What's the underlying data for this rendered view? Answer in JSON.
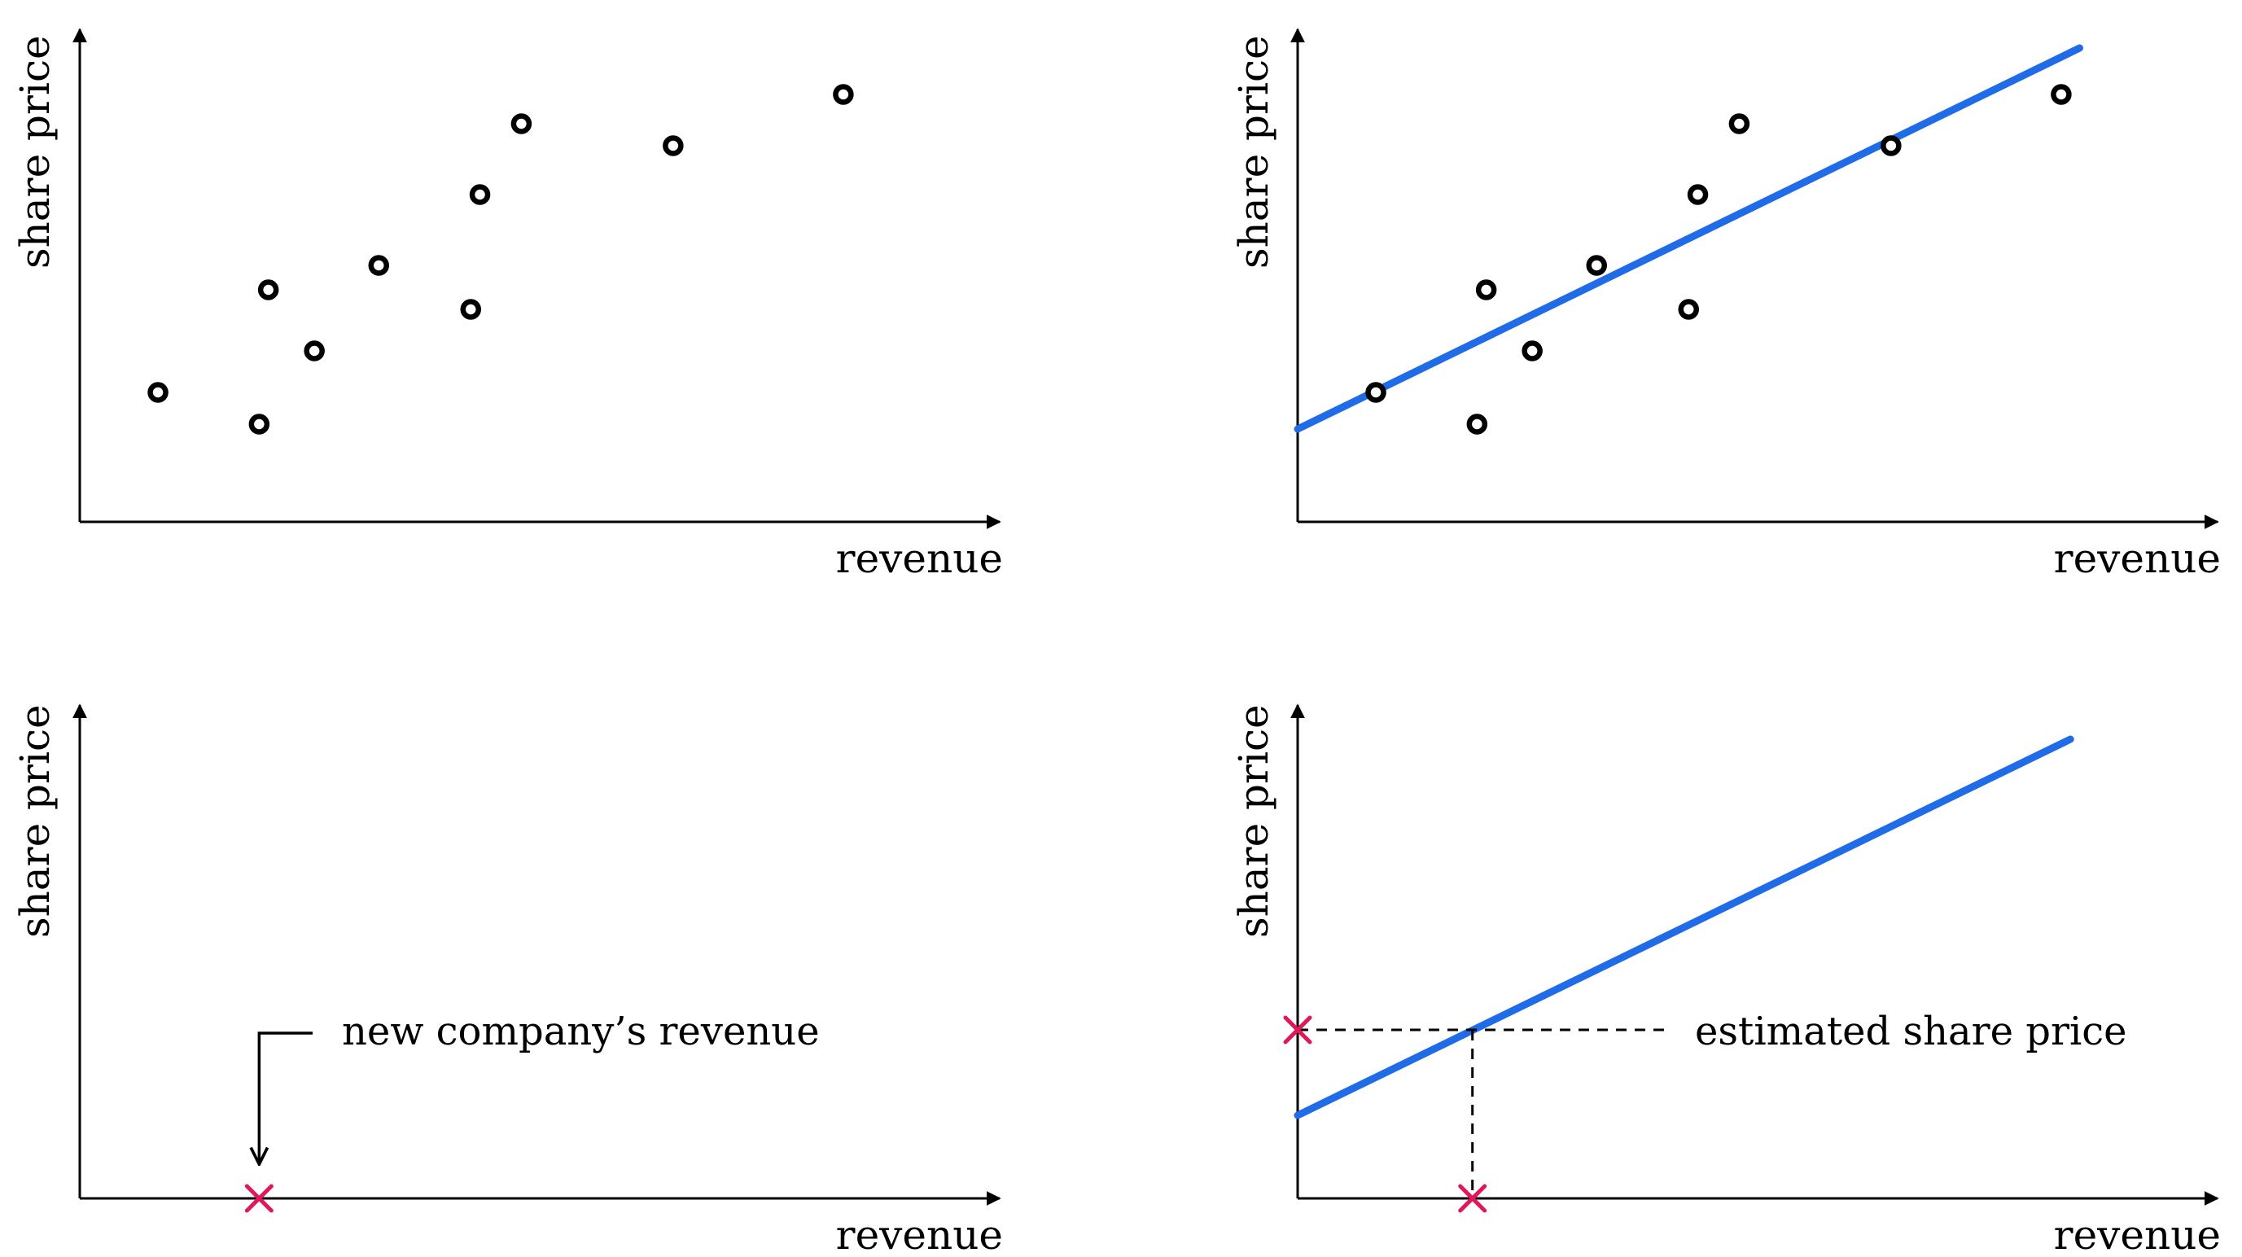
{
  "colors": {
    "fit_line": "#1f6be8",
    "marker": "#e0185a",
    "axis": "#000000",
    "point_fill": "#ffffff"
  },
  "chart_data": [
    {
      "type": "scatter",
      "xlabel": "revenue",
      "ylabel": "share price",
      "xlim": [
        0,
        100
      ],
      "ylim": [
        0,
        100
      ],
      "grid": false,
      "legend": "none",
      "points": [
        {
          "x": 8.5,
          "y": 26.5
        },
        {
          "x": 19.5,
          "y": 20.0
        },
        {
          "x": 20.5,
          "y": 47.5
        },
        {
          "x": 25.5,
          "y": 35.0
        },
        {
          "x": 32.5,
          "y": 52.5
        },
        {
          "x": 42.5,
          "y": 43.5
        },
        {
          "x": 43.5,
          "y": 67.0
        },
        {
          "x": 48.0,
          "y": 81.5
        },
        {
          "x": 64.5,
          "y": 77.0
        },
        {
          "x": 83.0,
          "y": 87.5
        }
      ]
    },
    {
      "type": "scatter",
      "xlabel": "revenue",
      "ylabel": "share price",
      "xlim": [
        0,
        100
      ],
      "ylim": [
        0,
        100
      ],
      "grid": false,
      "legend": "none",
      "points": [
        {
          "x": 8.5,
          "y": 26.5
        },
        {
          "x": 19.5,
          "y": 20.0
        },
        {
          "x": 20.5,
          "y": 47.5
        },
        {
          "x": 25.5,
          "y": 35.0
        },
        {
          "x": 32.5,
          "y": 52.5
        },
        {
          "x": 42.5,
          "y": 43.5
        },
        {
          "x": 43.5,
          "y": 67.0
        },
        {
          "x": 48.0,
          "y": 81.5
        },
        {
          "x": 64.5,
          "y": 77.0
        },
        {
          "x": 83.0,
          "y": 87.5
        }
      ],
      "fit_line": {
        "x": [
          0,
          85
        ],
        "y": [
          19,
          97
        ]
      }
    },
    {
      "type": "scatter",
      "xlabel": "revenue",
      "ylabel": "share price",
      "xlim": [
        0,
        100
      ],
      "ylim": [
        0,
        100
      ],
      "grid": false,
      "legend": "none",
      "marker": {
        "x": 19.5,
        "y": 0
      },
      "annotation": {
        "text": "new company’s revenue",
        "arrow_to": {
          "x": 19.5,
          "y": 7
        }
      }
    },
    {
      "type": "line",
      "xlabel": "revenue",
      "ylabel": "share price",
      "xlim": [
        0,
        100
      ],
      "ylim": [
        0,
        100
      ],
      "grid": false,
      "legend": "none",
      "fit_line": {
        "x": [
          0,
          84
        ],
        "y": [
          17,
          94
        ]
      },
      "x_marker": {
        "x": 19,
        "y": 0
      },
      "y_marker": {
        "x": 0,
        "y": 34.5
      },
      "estimate": {
        "x": 19,
        "y": 34.5
      },
      "annotation": {
        "text": "estimated share price"
      }
    }
  ]
}
